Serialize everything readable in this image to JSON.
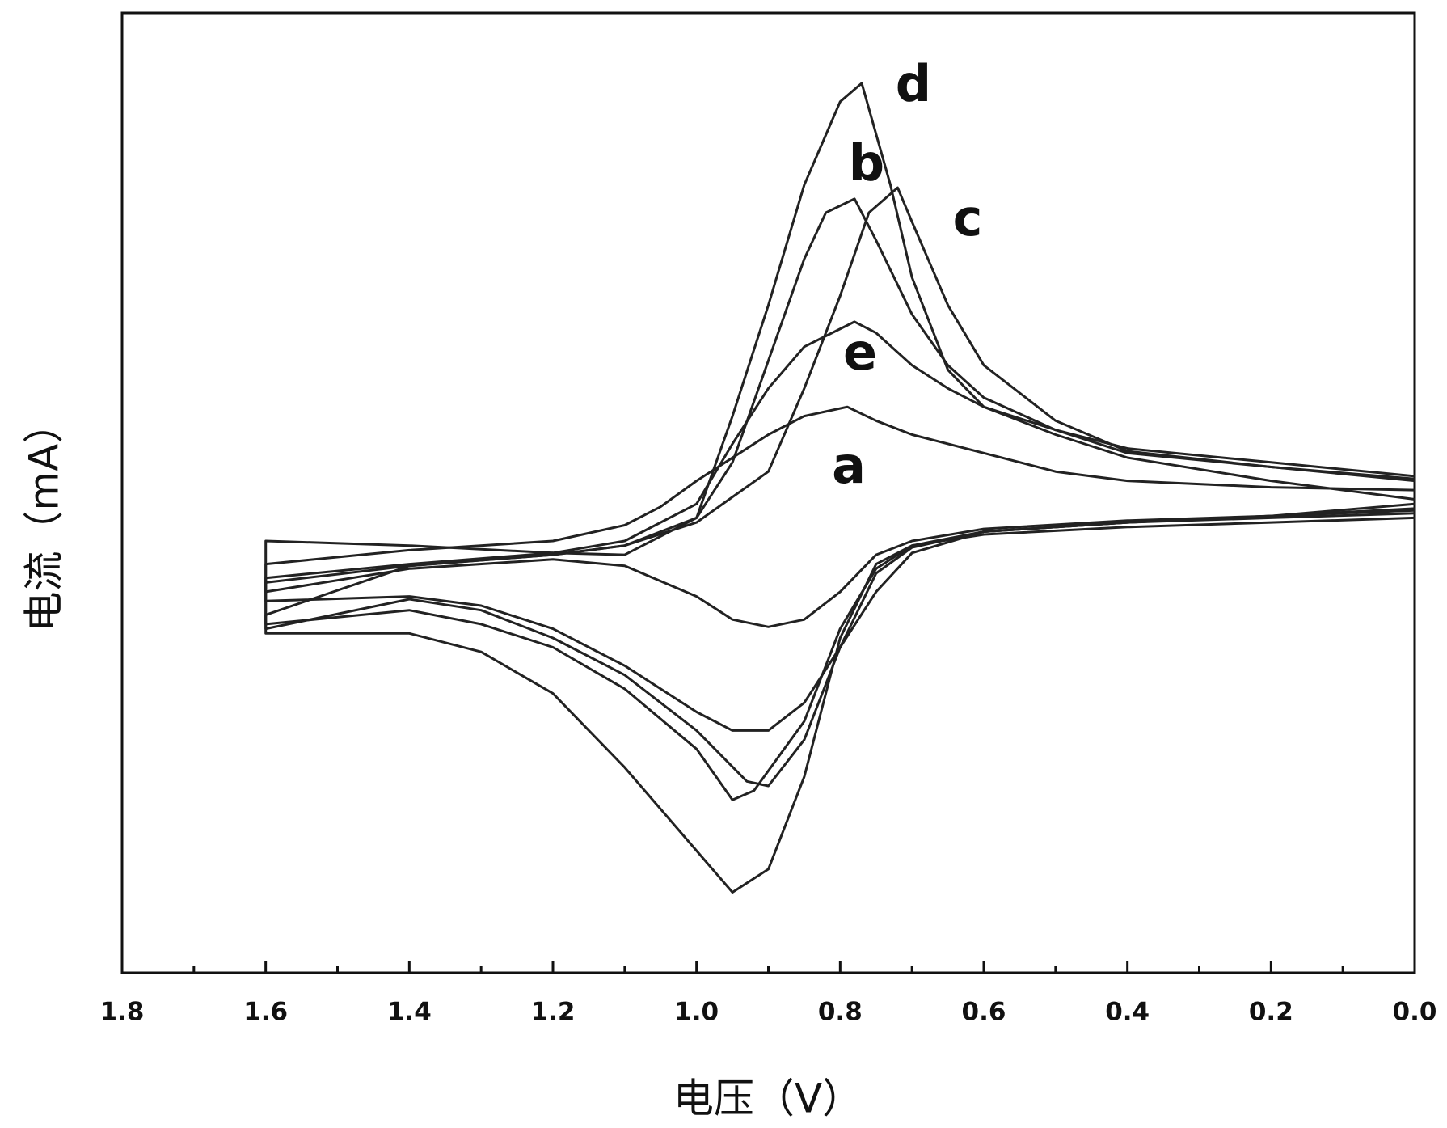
{
  "chart_data": {
    "type": "line",
    "x_label": "电压（V）",
    "y_label": "电流（mA）",
    "xlim": [
      1.8,
      0
    ],
    "ylim": [
      0,
      1038
    ],
    "xticks": [
      1.8,
      1.6,
      1.4,
      1.2,
      {
        "value": 1,
        "label": "1.0"
      },
      0.8,
      0.6,
      0.4,
      0.2,
      {
        "value": 0,
        "label": "0.0"
      }
    ],
    "xminorticks": [
      1.7,
      1.5,
      1.3,
      1.1,
      0.9,
      0.7,
      0.5,
      0.3,
      0.1
    ],
    "series": [
      {
        "name": "a",
        "color": "#222222",
        "x": [
          0,
          0.2,
          0.4,
          0.5,
          0.6,
          0.7,
          0.75,
          0.79,
          0.85,
          0.9,
          1.0,
          1.05,
          1.1,
          1.2,
          1.4,
          1.6,
          1.6,
          1.4,
          1.2,
          1.1,
          1.0,
          0.95,
          0.9,
          0.85,
          0.8,
          0.75,
          0.7,
          0.6,
          0.4,
          0.2,
          0
        ],
        "values": [
          522,
          525,
          532,
          542,
          562,
          582,
          597,
          612,
          602,
          582,
          532,
          504,
          484,
          467,
          457,
          442,
          412,
          437,
          447,
          440,
          407,
          382,
          374,
          382,
          412,
          452,
          467,
          480,
          489,
          494,
          500
        ]
      },
      {
        "name": "b",
        "color": "#222222",
        "x": [
          0,
          0.2,
          0.4,
          0.5,
          0.6,
          0.65,
          0.7,
          0.75,
          0.78,
          0.82,
          0.85,
          0.9,
          0.95,
          1.0,
          1.1,
          1.2,
          1.4,
          1.6,
          1.6,
          1.4,
          1.3,
          1.2,
          1.1,
          1.0,
          0.95,
          0.92,
          0.85,
          0.8,
          0.75,
          0.7,
          0.6,
          0.4,
          0.2,
          0
        ],
        "values": [
          537,
          552,
          567,
          587,
          622,
          657,
          712,
          792,
          837,
          822,
          772,
          662,
          552,
          492,
          462,
          452,
          440,
          422,
          377,
          392,
          377,
          352,
          307,
          242,
          187,
          197,
          272,
          372,
          437,
          462,
          477,
          487,
          494,
          502
        ]
      },
      {
        "name": "c",
        "color": "#222222",
        "x": [
          0,
          0.2,
          0.4,
          0.5,
          0.6,
          0.65,
          0.7,
          0.72,
          0.76,
          0.8,
          0.85,
          0.9,
          1.0,
          1.1,
          1.2,
          1.4,
          1.6,
          1.6,
          1.4,
          1.3,
          1.2,
          1.1,
          1.0,
          0.93,
          0.9,
          0.85,
          0.8,
          0.75,
          0.7,
          0.6,
          0.4,
          0.2,
          0
        ],
        "values": [
          532,
          547,
          564,
          597,
          657,
          722,
          812,
          849,
          822,
          732,
          632,
          542,
          487,
          462,
          452,
          440,
          387,
          372,
          404,
          392,
          362,
          322,
          262,
          207,
          202,
          252,
          352,
          432,
          460,
          477,
          487,
          494,
          507
        ]
      },
      {
        "name": "d",
        "color": "#222222",
        "x": [
          0,
          0.2,
          0.4,
          0.5,
          0.6,
          0.65,
          0.7,
          0.73,
          0.77,
          0.8,
          0.85,
          0.9,
          0.95,
          1.0,
          1.1,
          1.2,
          1.4,
          1.6,
          1.6,
          1.4,
          1.3,
          1.2,
          1.1,
          1.0,
          0.95,
          0.9,
          0.85,
          0.8,
          0.75,
          0.7,
          0.6,
          0.4,
          0.2,
          0
        ],
        "values": [
          512,
          532,
          557,
          582,
          612,
          652,
          752,
          852,
          962,
          942,
          852,
          722,
          602,
          492,
          452,
          454,
          462,
          467,
          367,
          367,
          347,
          302,
          222,
          132,
          87,
          112,
          212,
          362,
          442,
          462,
          474,
          482,
          487,
          492
        ]
      },
      {
        "name": "e",
        "color": "#222222",
        "x": [
          0,
          0.2,
          0.4,
          0.5,
          0.6,
          0.65,
          0.7,
          0.75,
          0.78,
          0.85,
          0.9,
          0.95,
          1.0,
          1.1,
          1.2,
          1.4,
          1.6,
          1.6,
          1.4,
          1.3,
          1.2,
          1.1,
          1.0,
          0.95,
          0.9,
          0.85,
          0.8,
          0.75,
          0.7,
          0.6,
          0.4,
          0.2,
          0
        ],
        "values": [
          534,
          547,
          562,
          587,
          612,
          632,
          657,
          692,
          704,
          677,
          632,
          572,
          507,
          467,
          454,
          442,
          427,
          402,
          407,
          397,
          372,
          332,
          282,
          262,
          262,
          292,
          352,
          412,
          454,
          477,
          487,
          492,
          497
        ]
      }
    ]
  }
}
